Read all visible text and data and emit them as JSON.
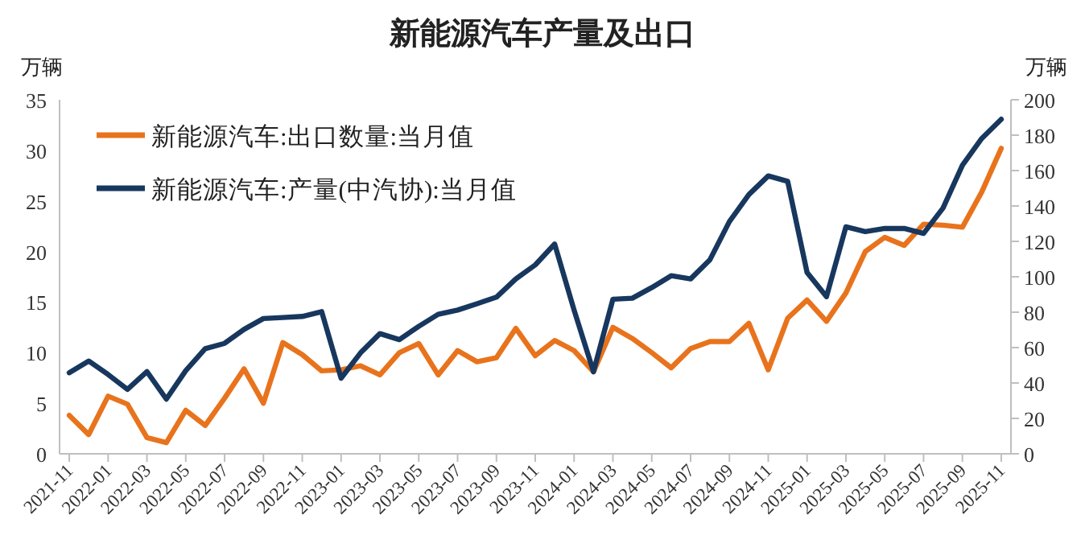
{
  "chart_data": {
    "type": "line",
    "title": "新能源汽车产量及出口",
    "ylabel": "万辆",
    "y2label": "万辆",
    "categories": [
      "2021-11",
      null,
      "2022-01",
      null,
      "2022-03",
      null,
      "2022-05",
      null,
      "2022-07",
      null,
      "2022-09",
      null,
      "2022-11",
      null,
      "2023-01",
      null,
      "2023-03",
      null,
      "2023-05",
      null,
      "2023-07",
      null,
      "2023-09",
      null,
      "2023-11",
      null,
      "2024-01",
      null,
      "2024-03",
      null,
      "2024-05",
      null,
      "2024-07",
      null,
      "2024-09",
      null,
      "2024-11",
      null,
      "2025-01",
      null,
      "2025-03",
      null,
      "2025-05",
      null,
      "2025-07",
      null,
      "2025-09",
      null,
      "2025-11"
    ],
    "series": [
      {
        "name": "新能源汽车:出口数量:当月值",
        "color": "#e8731c",
        "values": [
          3.8,
          1.9,
          5.7,
          4.9,
          1.6,
          1.1,
          4.3,
          2.8,
          5.5,
          8.4,
          5.0,
          11.0,
          9.8,
          8.2,
          8.3,
          8.7,
          7.8,
          10.0,
          10.9,
          7.8,
          10.2,
          9.1,
          9.5,
          12.4,
          9.7,
          11.2,
          10.2,
          8.1,
          12.5,
          11.4,
          10.0,
          8.5,
          10.4,
          11.1,
          11.1,
          12.9,
          8.3,
          13.4,
          15.2,
          13.1,
          15.9,
          20.0,
          21.4,
          20.6,
          22.7,
          22.6,
          22.4,
          25.9,
          30.2
        ]
      },
      {
        "name": "新能源汽车:产量(中汽协):当月值",
        "color": "#17375e",
        "axis": "y2",
        "values": [
          45.8,
          52.4,
          44.8,
          36.4,
          46.4,
          30.9,
          47.0,
          59.4,
          62.4,
          70.3,
          76.4,
          77.0,
          77.6,
          80.3,
          42.7,
          57.0,
          67.9,
          64.5,
          72.0,
          78.8,
          81.2,
          84.8,
          88.5,
          98.8,
          106.7,
          118.5,
          81.2,
          46.4,
          87.3,
          87.9,
          93.9,
          100.6,
          98.8,
          109.7,
          131.2,
          146.4,
          157.0,
          153.9,
          102.4,
          88.8,
          128.2,
          125.5,
          127.3,
          127.3,
          124.5,
          138.8,
          163.0,
          178.2,
          189.0
        ]
      }
    ],
    "ylim": [
      0,
      35
    ],
    "yticks": [
      0,
      5,
      10,
      15,
      20,
      25,
      30,
      35
    ],
    "y2lim": [
      0,
      200
    ],
    "y2ticks": [
      0,
      20,
      40,
      60,
      80,
      100,
      120,
      140,
      160,
      180,
      200
    ],
    "grid": false,
    "legend": "top left",
    "line_style": "solid",
    "marker": "none"
  }
}
